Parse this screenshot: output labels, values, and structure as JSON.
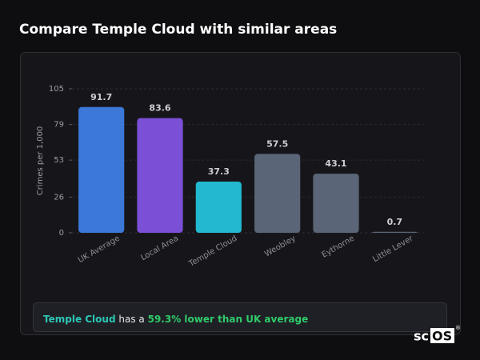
{
  "chart_data": {
    "type": "bar",
    "title": "Compare Temple Cloud with similar areas",
    "y_label": "Crimes per 1,000",
    "categories": [
      "UK Average",
      "Local Area",
      "Temple Cloud",
      "Weobley",
      "Eythorne",
      "Little Lever"
    ],
    "values": [
      91.7,
      83.6,
      37.3,
      57.5,
      43.1,
      0.7
    ],
    "colors": [
      "#3b78d8",
      "#7b4fd6",
      "#22b8cf",
      "#5a6577",
      "#5a6577",
      "#5a6577"
    ],
    "ylim": [
      0,
      105
    ],
    "yticks": [
      0,
      26,
      53,
      79,
      105
    ],
    "grid": true
  },
  "callout": {
    "area": "Temple Cloud",
    "middle": "has a",
    "highlight": "59.3% lower than UK average"
  },
  "logo": {
    "text": "sc",
    "boxed": "OS",
    "mark": "®"
  }
}
